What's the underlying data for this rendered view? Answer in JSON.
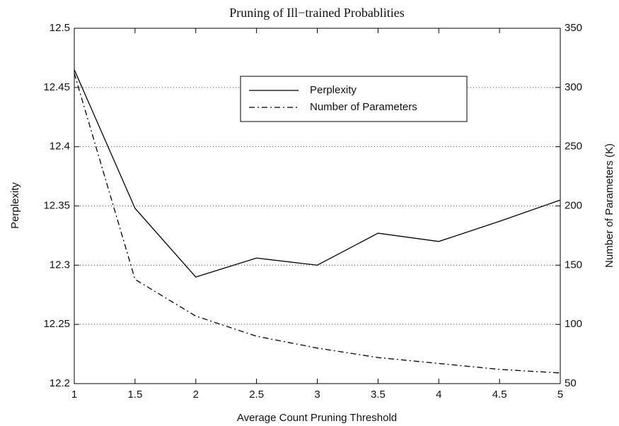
{
  "chart_data": {
    "type": "line",
    "title": "Pruning of Ill−trained Probablities",
    "x_label": "Average Count Pruning Threshold",
    "y_label": "Perplexity",
    "y2_label": "Number of Parameters (K)",
    "x": [
      1,
      1.5,
      2,
      2.5,
      3,
      3.5,
      4,
      4.5,
      5
    ],
    "series": [
      {
        "name": "Perplexity",
        "color": "#000000",
        "linestyle": "solid",
        "values": [
          12.465,
          12.348,
          12.29,
          12.306,
          12.3,
          12.327,
          12.32,
          12.337,
          12.355
        ]
      },
      {
        "name": "Number of Parameters",
        "color": "#000000",
        "linestyle": "dashdot",
        "axis": "y2",
        "values": [
          312,
          138,
          107,
          90,
          80,
          72,
          67,
          62,
          59
        ]
      }
    ],
    "xlim": [
      1,
      5
    ],
    "xticks": [
      1,
      1.5,
      2,
      2.5,
      3,
      3.5,
      4,
      4.5,
      5
    ],
    "ylim": [
      12.2,
      12.5
    ],
    "yticks": [
      12.2,
      12.25,
      12.3,
      12.35,
      12.4,
      12.45,
      12.5
    ],
    "y2lim": [
      50,
      350
    ],
    "y2ticks": [
      50,
      100,
      150,
      200,
      250,
      300,
      350
    ],
    "grid": true,
    "legend": "top"
  }
}
